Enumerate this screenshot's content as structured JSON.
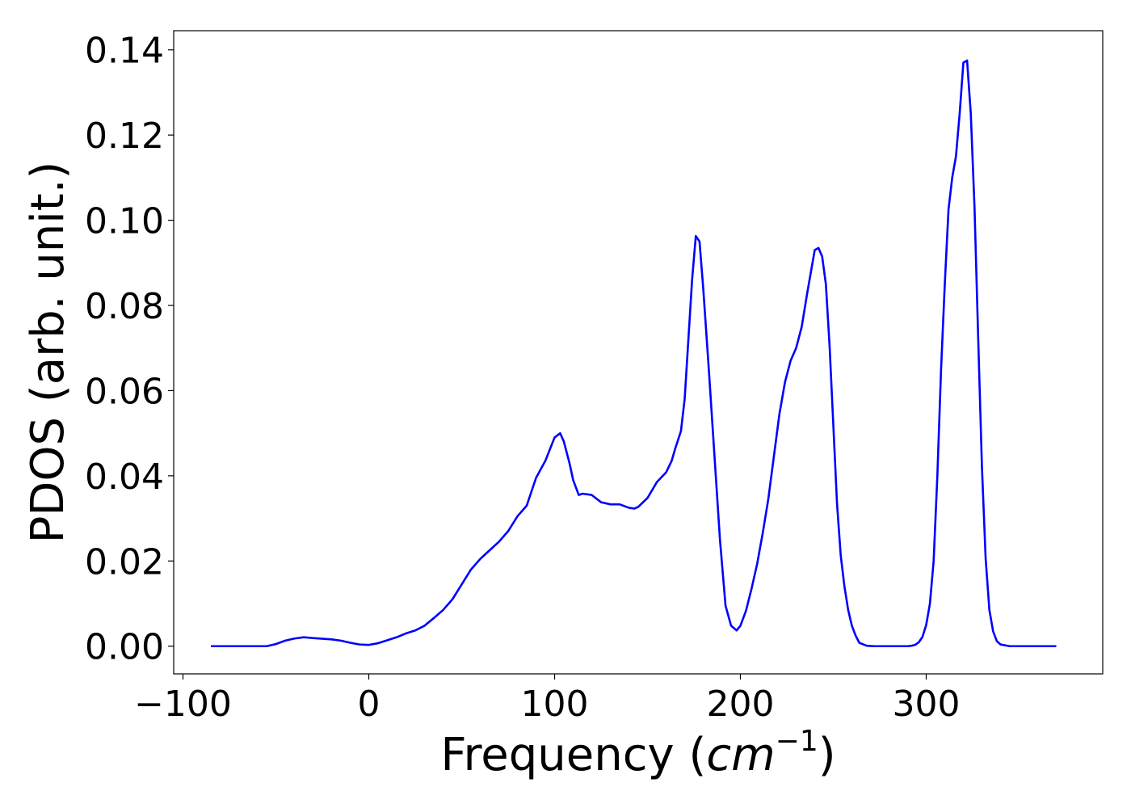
{
  "chart_data": {
    "type": "line",
    "title": "",
    "xlabel": "Frequency",
    "xlabel_unit": "cm",
    "xlabel_unit_exponent": "−1",
    "ylabel": "PDOS (arb. unit.)",
    "xlim": [
      -105,
      395
    ],
    "ylim": [
      -0.0065,
      0.1445
    ],
    "xticks": [
      -100,
      0,
      100,
      200,
      300
    ],
    "xtick_labels": [
      "−100",
      "0",
      "100",
      "200",
      "300"
    ],
    "yticks": [
      0.0,
      0.02,
      0.04,
      0.06,
      0.08,
      0.1,
      0.12,
      0.14
    ],
    "ytick_labels": [
      "0.00",
      "0.02",
      "0.04",
      "0.06",
      "0.08",
      "0.10",
      "0.12",
      "0.14"
    ],
    "grid": false,
    "line_color": "#0000ff",
    "series": [
      {
        "x": [
          -85,
          -70,
          -55,
          -50,
          -45,
          -40,
          -35,
          -30,
          -20,
          -15,
          -10,
          -5,
          0,
          5,
          10,
          15,
          20,
          25,
          30,
          35,
          40,
          45,
          50,
          55,
          60,
          65,
          70,
          75,
          80,
          85,
          90,
          95,
          100,
          103,
          105,
          108,
          110,
          113,
          115,
          120,
          125,
          130,
          135,
          140,
          143,
          145,
          150,
          155,
          160,
          163,
          165,
          168,
          170,
          172,
          174,
          176,
          178,
          180,
          183,
          186,
          189,
          192,
          195,
          198,
          200,
          203,
          206,
          209,
          212,
          215,
          218,
          221,
          224,
          227,
          230,
          233,
          236,
          238,
          240,
          242,
          244,
          246,
          248,
          250,
          252,
          254,
          256,
          258,
          260,
          262,
          264,
          268,
          272,
          280,
          286,
          290,
          292,
          294,
          296,
          298,
          300,
          302,
          304,
          306,
          308,
          310,
          312,
          314,
          316,
          318,
          320,
          322,
          324,
          326,
          328,
          330,
          332,
          334,
          336,
          338,
          340,
          345,
          355,
          370
        ],
        "y": [
          0.0,
          0.0,
          0.0,
          0.0005,
          0.0013,
          0.0018,
          0.0021,
          0.0019,
          0.0016,
          0.0013,
          0.0008,
          0.0004,
          0.0003,
          0.0007,
          0.0014,
          0.0021,
          0.003,
          0.0037,
          0.0048,
          0.0066,
          0.0085,
          0.011,
          0.0145,
          0.018,
          0.0205,
          0.0225,
          0.0245,
          0.027,
          0.0305,
          0.033,
          0.0395,
          0.0435,
          0.049,
          0.05,
          0.048,
          0.043,
          0.039,
          0.0355,
          0.0358,
          0.0355,
          0.0338,
          0.0333,
          0.0333,
          0.0325,
          0.0323,
          0.0327,
          0.0348,
          0.0385,
          0.0408,
          0.0435,
          0.0465,
          0.0505,
          0.058,
          0.072,
          0.086,
          0.0963,
          0.095,
          0.084,
          0.065,
          0.045,
          0.025,
          0.0095,
          0.0048,
          0.0037,
          0.0048,
          0.0083,
          0.0135,
          0.0193,
          0.0265,
          0.0345,
          0.0445,
          0.0545,
          0.062,
          0.067,
          0.07,
          0.075,
          0.083,
          0.088,
          0.093,
          0.0935,
          0.0915,
          0.085,
          0.0705,
          0.052,
          0.0335,
          0.0213,
          0.014,
          0.0085,
          0.0048,
          0.0025,
          0.0008,
          0.0001,
          0.0,
          0.0,
          0.0,
          0.0,
          0.0001,
          0.0003,
          0.0009,
          0.0022,
          0.005,
          0.01,
          0.02,
          0.04,
          0.065,
          0.085,
          0.1025,
          0.11,
          0.115,
          0.125,
          0.137,
          0.1375,
          0.125,
          0.103,
          0.072,
          0.042,
          0.0205,
          0.0085,
          0.0035,
          0.0012,
          0.0004,
          0.0,
          0.0,
          0.0
        ]
      }
    ]
  }
}
